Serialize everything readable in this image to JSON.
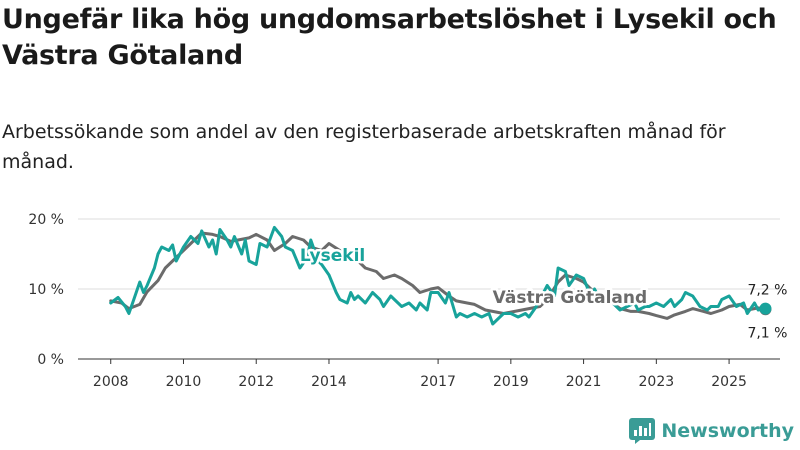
{
  "title": "Ungefär lika hög ungdomsarbetslöshet i Lysekil och Västra Götaland",
  "subtitle": "Arbetssökande som andel av den registerbaserade arbetskraften månad för månad.",
  "brand": {
    "name": "Newsworthy"
  },
  "chart_data": {
    "type": "line",
    "y_ticks": [
      {
        "value": 0,
        "label": "0 %"
      },
      {
        "value": 10,
        "label": "10 %"
      },
      {
        "value": 20,
        "label": "20 %"
      }
    ],
    "x_ticks": [
      {
        "value": 2008.0,
        "label": "2008"
      },
      {
        "value": 2010.0,
        "label": "2010"
      },
      {
        "value": 2012.0,
        "label": "2012"
      },
      {
        "value": 2014.0,
        "label": "2014"
      },
      {
        "value": 2017.0,
        "label": "2017"
      },
      {
        "value": 2019.0,
        "label": "2019"
      },
      {
        "value": 2021.0,
        "label": "2021"
      },
      {
        "value": 2023.0,
        "label": "2023"
      },
      {
        "value": 2025.0,
        "label": "2025"
      }
    ],
    "xlim": [
      2007.1,
      2026.4
    ],
    "ylim": [
      0,
      20
    ],
    "grid": true,
    "series": [
      {
        "name": "Västra Götaland",
        "color": "#6b6b6b",
        "end_label": "7,1 %",
        "points": [
          [
            2008.0,
            8.3
          ],
          [
            2008.3,
            8.0
          ],
          [
            2008.5,
            7.2
          ],
          [
            2008.8,
            7.8
          ],
          [
            2009.0,
            9.6
          ],
          [
            2009.3,
            11.2
          ],
          [
            2009.5,
            13.0
          ],
          [
            2009.8,
            14.5
          ],
          [
            2010.0,
            15.5
          ],
          [
            2010.3,
            17.0
          ],
          [
            2010.5,
            18.0
          ],
          [
            2010.8,
            17.8
          ],
          [
            2011.0,
            17.5
          ],
          [
            2011.3,
            16.8
          ],
          [
            2011.5,
            17.0
          ],
          [
            2011.8,
            17.3
          ],
          [
            2012.0,
            17.8
          ],
          [
            2012.3,
            17.0
          ],
          [
            2012.5,
            15.5
          ],
          [
            2012.8,
            16.5
          ],
          [
            2013.0,
            17.5
          ],
          [
            2013.3,
            17.0
          ],
          [
            2013.5,
            16.0
          ],
          [
            2013.8,
            15.5
          ],
          [
            2014.0,
            16.5
          ],
          [
            2014.3,
            15.5
          ],
          [
            2014.5,
            14.5
          ],
          [
            2014.8,
            14.0
          ],
          [
            2015.0,
            13.0
          ],
          [
            2015.3,
            12.5
          ],
          [
            2015.5,
            11.5
          ],
          [
            2015.8,
            12.0
          ],
          [
            2016.0,
            11.5
          ],
          [
            2016.3,
            10.5
          ],
          [
            2016.5,
            9.5
          ],
          [
            2016.8,
            10.0
          ],
          [
            2017.0,
            10.2
          ],
          [
            2017.3,
            9.0
          ],
          [
            2017.5,
            8.3
          ],
          [
            2017.8,
            8.0
          ],
          [
            2018.0,
            7.8
          ],
          [
            2018.3,
            7.0
          ],
          [
            2018.5,
            6.8
          ],
          [
            2018.8,
            6.5
          ],
          [
            2019.0,
            6.7
          ],
          [
            2019.3,
            7.0
          ],
          [
            2019.5,
            7.2
          ],
          [
            2019.8,
            7.5
          ],
          [
            2020.0,
            8.5
          ],
          [
            2020.3,
            11.0
          ],
          [
            2020.5,
            12.0
          ],
          [
            2020.8,
            11.5
          ],
          [
            2021.0,
            11.0
          ],
          [
            2021.3,
            9.5
          ],
          [
            2021.5,
            8.8
          ],
          [
            2021.8,
            8.0
          ],
          [
            2022.0,
            7.2
          ],
          [
            2022.3,
            6.8
          ],
          [
            2022.5,
            6.8
          ],
          [
            2022.8,
            6.5
          ],
          [
            2023.0,
            6.2
          ],
          [
            2023.3,
            5.8
          ],
          [
            2023.5,
            6.3
          ],
          [
            2023.8,
            6.8
          ],
          [
            2024.0,
            7.2
          ],
          [
            2024.3,
            6.8
          ],
          [
            2024.5,
            6.5
          ],
          [
            2024.8,
            7.0
          ],
          [
            2025.0,
            7.5
          ],
          [
            2025.3,
            7.8
          ],
          [
            2025.5,
            7.0
          ],
          [
            2025.8,
            7.3
          ],
          [
            2026.0,
            7.1
          ]
        ]
      },
      {
        "name": "Lysekil",
        "color": "#18a39b",
        "end_label": "7,2 %",
        "points": [
          [
            2008.0,
            8.0
          ],
          [
            2008.2,
            8.8
          ],
          [
            2008.4,
            7.5
          ],
          [
            2008.5,
            6.5
          ],
          [
            2008.6,
            8.0
          ],
          [
            2008.8,
            11.0
          ],
          [
            2008.9,
            9.5
          ],
          [
            2009.0,
            10.5
          ],
          [
            2009.2,
            13.0
          ],
          [
            2009.3,
            15.0
          ],
          [
            2009.4,
            16.0
          ],
          [
            2009.6,
            15.5
          ],
          [
            2009.7,
            16.3
          ],
          [
            2009.8,
            14.0
          ],
          [
            2010.0,
            16.0
          ],
          [
            2010.2,
            17.5
          ],
          [
            2010.4,
            16.5
          ],
          [
            2010.5,
            18.3
          ],
          [
            2010.7,
            16.0
          ],
          [
            2010.8,
            17.0
          ],
          [
            2010.9,
            15.0
          ],
          [
            2011.0,
            18.5
          ],
          [
            2011.2,
            17.0
          ],
          [
            2011.3,
            16.0
          ],
          [
            2011.4,
            17.5
          ],
          [
            2011.6,
            15.0
          ],
          [
            2011.7,
            17.0
          ],
          [
            2011.8,
            14.0
          ],
          [
            2012.0,
            13.5
          ],
          [
            2012.1,
            16.5
          ],
          [
            2012.3,
            16.0
          ],
          [
            2012.5,
            18.8
          ],
          [
            2012.7,
            17.5
          ],
          [
            2012.8,
            16.0
          ],
          [
            2013.0,
            15.5
          ],
          [
            2013.2,
            13.0
          ],
          [
            2013.4,
            14.5
          ],
          [
            2013.5,
            17.0
          ],
          [
            2013.7,
            14.0
          ],
          [
            2013.8,
            13.5
          ],
          [
            2014.0,
            12.0
          ],
          [
            2014.2,
            9.5
          ],
          [
            2014.3,
            8.5
          ],
          [
            2014.5,
            8.0
          ],
          [
            2014.6,
            9.5
          ],
          [
            2014.7,
            8.5
          ],
          [
            2014.8,
            9.0
          ],
          [
            2015.0,
            8.0
          ],
          [
            2015.2,
            9.5
          ],
          [
            2015.4,
            8.5
          ],
          [
            2015.5,
            7.5
          ],
          [
            2015.7,
            9.0
          ],
          [
            2015.8,
            8.5
          ],
          [
            2016.0,
            7.5
          ],
          [
            2016.2,
            8.0
          ],
          [
            2016.4,
            7.0
          ],
          [
            2016.5,
            8.0
          ],
          [
            2016.7,
            7.0
          ],
          [
            2016.8,
            9.5
          ],
          [
            2017.0,
            9.5
          ],
          [
            2017.2,
            8.0
          ],
          [
            2017.3,
            9.5
          ],
          [
            2017.5,
            6.0
          ],
          [
            2017.6,
            6.5
          ],
          [
            2017.8,
            6.0
          ],
          [
            2018.0,
            6.5
          ],
          [
            2018.2,
            6.0
          ],
          [
            2018.4,
            6.5
          ],
          [
            2018.5,
            5.0
          ],
          [
            2018.6,
            5.5
          ],
          [
            2018.8,
            6.5
          ],
          [
            2019.0,
            6.5
          ],
          [
            2019.2,
            6.0
          ],
          [
            2019.4,
            6.5
          ],
          [
            2019.5,
            6.0
          ],
          [
            2019.7,
            7.5
          ],
          [
            2019.8,
            8.5
          ],
          [
            2020.0,
            10.5
          ],
          [
            2020.2,
            9.0
          ],
          [
            2020.3,
            13.0
          ],
          [
            2020.5,
            12.5
          ],
          [
            2020.6,
            10.5
          ],
          [
            2020.8,
            12.0
          ],
          [
            2021.0,
            11.5
          ],
          [
            2021.2,
            9.0
          ],
          [
            2021.3,
            10.0
          ],
          [
            2021.5,
            8.0
          ],
          [
            2021.7,
            9.5
          ],
          [
            2021.8,
            8.0
          ],
          [
            2022.0,
            7.0
          ],
          [
            2022.2,
            7.5
          ],
          [
            2022.4,
            8.0
          ],
          [
            2022.5,
            7.0
          ],
          [
            2022.7,
            7.5
          ],
          [
            2022.8,
            7.5
          ],
          [
            2023.0,
            8.0
          ],
          [
            2023.2,
            7.5
          ],
          [
            2023.4,
            8.5
          ],
          [
            2023.5,
            7.5
          ],
          [
            2023.7,
            8.5
          ],
          [
            2023.8,
            9.5
          ],
          [
            2024.0,
            9.0
          ],
          [
            2024.2,
            7.5
          ],
          [
            2024.4,
            7.0
          ],
          [
            2024.5,
            7.5
          ],
          [
            2024.7,
            7.5
          ],
          [
            2024.8,
            8.5
          ],
          [
            2025.0,
            9.0
          ],
          [
            2025.2,
            7.5
          ],
          [
            2025.4,
            8.0
          ],
          [
            2025.5,
            6.5
          ],
          [
            2025.7,
            8.0
          ],
          [
            2025.8,
            7.0
          ],
          [
            2026.0,
            7.2
          ]
        ]
      }
    ],
    "annotations": [
      {
        "text": "Lysekil",
        "series": "Lysekil",
        "x": 2013.2,
        "y": 14.0
      },
      {
        "text": "Västra Götaland",
        "series": "Västra Götaland",
        "x": 2018.5,
        "y": 8.0
      }
    ]
  }
}
